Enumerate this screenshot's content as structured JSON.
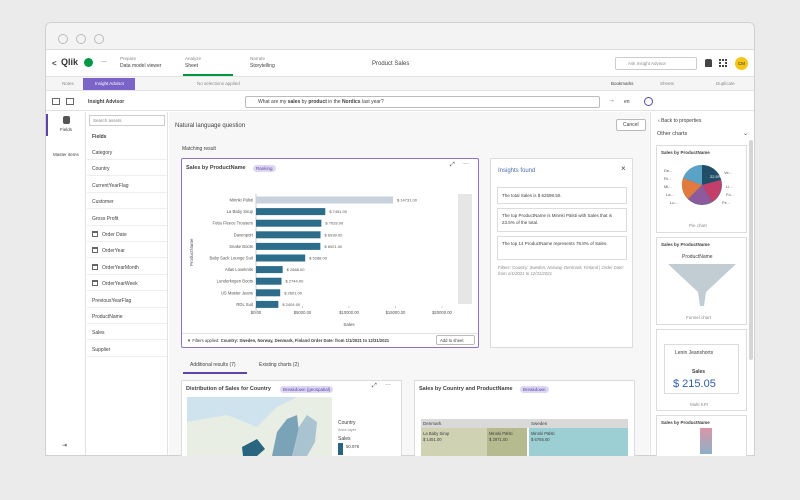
{
  "header": {
    "back": "<",
    "logo": "Qlik",
    "menu": "...",
    "tabs": [
      {
        "label": "Prepare",
        "sub": "Data model viewer"
      },
      {
        "label": "Analyze",
        "sub": "Sheet"
      },
      {
        "label": "Narrate",
        "sub": "Storytelling"
      }
    ],
    "app_title": "Product Sales",
    "search": "Ask Insight Advisor",
    "avatar": "CM"
  },
  "toolbar": {
    "notes": "Notes",
    "insight_advisor": "Insight Advisor",
    "selections": "No selections applied",
    "bookmarks": "Bookmarks",
    "sheets": "Sheets",
    "duplicate": "Duplicate"
  },
  "advisor_bar": {
    "title": "Insight Advisor",
    "query_pre": "What are my ",
    "query_b1": "sales",
    "query_mid1": " by ",
    "query_b2": "product",
    "query_mid2": " in the ",
    "query_b3": "Nordics",
    "query_post": " last year?",
    "language": "en"
  },
  "rail": {
    "fields": "Fields",
    "master_items": "Master items"
  },
  "fields_panel": {
    "search": "Search assets",
    "heading": "Fields",
    "items": [
      "Category",
      "Country",
      "CurrentYearFlag",
      "Customer",
      "Gross Profit",
      "Order Date",
      "OrderYear",
      "OrderYearMonth",
      "OrderYearWeek",
      "PreviousYearFlag",
      "ProductName",
      "Sales",
      "Supplier"
    ]
  },
  "main": {
    "heading": "Natural language question",
    "cancel": "Cancel",
    "matching": "Matching result",
    "chart": {
      "title": "Sales by ProductName",
      "badge": "Ranking",
      "y_label": "ProductName",
      "x_label": "Sales",
      "categories": [
        "Minnki Pälsti",
        "La Baby Sirup",
        "Fotia Fleece Trousers",
        "Davenport",
        "Snake Boots",
        "Baby Sack Lounge Suit",
        "Atlas Loveknits",
        "Lunderkogen Boots",
        "US Master Jeans",
        "RDL Suit"
      ],
      "values": [
        14731,
        7451,
        7028,
        6939,
        6921,
        5288,
        2868,
        2744,
        2601,
        2404
      ],
      "value_labels": [
        "$ 14731.00",
        "$ 7451.00",
        "$ 7028.00",
        "$ 6939.00",
        "$ 6921.00",
        "$ 5288.00",
        "$ 2868.00",
        "$ 2744.00",
        "$ 2601.00",
        "$ 2404.00"
      ],
      "color": "#2d6d8c",
      "first_color": "#c7d2dc",
      "xlim": [
        0,
        20000
      ],
      "xticks": [
        {
          "value": 0,
          "label": "$0.00"
        },
        {
          "value": 5000,
          "label": "$5000.00"
        },
        {
          "value": 10000,
          "label": "$10000.00"
        },
        {
          "value": 15000,
          "label": "$15000.00"
        },
        {
          "value": 20000,
          "label": "$20000.00"
        }
      ],
      "filters_label": "Filters applied:",
      "filters": "Country: Sweden, Norway, Denmark, Finland Order Date: from 1/1/2021 to 12/31/2021",
      "add": "Add to sheet"
    },
    "insights": {
      "title": "Insights found",
      "close": "×",
      "cards": [
        "The total Sales is $ 62598.50.",
        "The top ProductName is Minnki Pälsti with Sales that is 23.5% of the total.",
        "The top 14 ProductName represents 78.8% of Sales."
      ],
      "note": "Filters: Country: Sweden, Norway, Denmark, Finland | Order Date: from 1/1/2021 to 12/31/2021"
    },
    "tabs": [
      "Additional results (7)",
      "Existing charts (2)"
    ],
    "map_card": {
      "title": "Distribution of Sales for Country",
      "badge": "Breakdown (geospatial)",
      "legend_title": "Country",
      "legend_sub": "Area layer",
      "legend_measure": "Sales",
      "legend_value": "50.076"
    },
    "treemap_card": {
      "title": "Sales by Country and ProductName",
      "badge": "Breakdown",
      "groups": [
        "Denmark",
        "Sweden"
      ],
      "cells": [
        {
          "name": "La Baby Sirup",
          "value": "$ 1451.00"
        },
        {
          "name": "Minnki Pälsti",
          "value": "$ 2971.00"
        },
        {
          "name": "Minnki Pälsti",
          "value": "$ 6755.00"
        }
      ]
    }
  },
  "right_panel": {
    "back": "Back to properties",
    "heading": "Other charts",
    "pie": {
      "title": "Sales by ProductName",
      "labels": [
        "De...",
        "Ri...",
        "Mi...",
        "La...",
        "Lu...",
        "Ve...",
        "Li...",
        "Fo...",
        "Fe..."
      ],
      "center": "22.5%",
      "caption": "Pie chart"
    },
    "funnel": {
      "title": "Sales by ProductName",
      "label": "ProductName",
      "caption": "Funnel chart"
    },
    "kpi": {
      "item": "Lenin Jeanshorts",
      "measure": "Sales",
      "value": "$ 215.05",
      "caption": "Multi KPI"
    },
    "last": {
      "title": "Sales by ProductName"
    }
  }
}
